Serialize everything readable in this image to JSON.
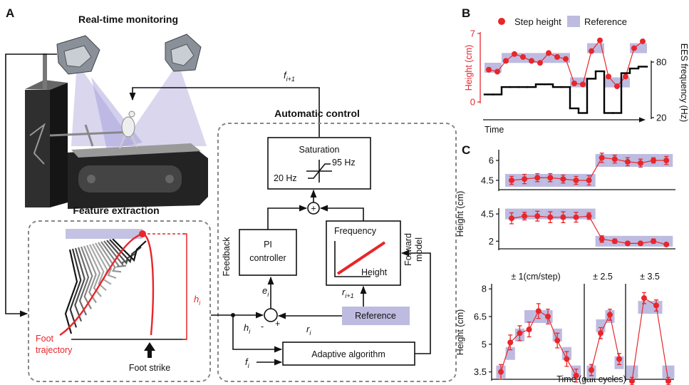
{
  "panel_labels": [
    "A",
    "B",
    "C"
  ],
  "diagram": {
    "titles": {
      "monitoring": "Real-time monitoring",
      "feature": "Feature extraction",
      "control": "Automatic control"
    },
    "saturation": {
      "title": "Saturation",
      "upper": "95 Hz",
      "lower": "20 Hz"
    },
    "sum_sign": "+",
    "pi_box": [
      "PI",
      "controller"
    ],
    "feedback": "Feedback",
    "forward_box": {
      "y_axis": "Frequency",
      "x_axis": "Height"
    },
    "forward_model": [
      "Forward",
      "model"
    ],
    "reference": "Reference",
    "adaptive": "Adaptive algorithm",
    "signs": {
      "minus": "-",
      "plus": "+"
    },
    "foot_trajectory": [
      "Foot",
      "trajectory"
    ],
    "foot_strike": "Foot strike",
    "symbols": {
      "f_next": {
        "base": "f",
        "sub": "i+1"
      },
      "e": {
        "base": "e",
        "sub": "i"
      },
      "r_next": {
        "base": "r",
        "sub": "i+1"
      },
      "r": {
        "base": "r",
        "sub": "i"
      },
      "h_input": {
        "base": "h",
        "sub": "i"
      },
      "f": {
        "base": "f",
        "sub": "i"
      },
      "h_feature": {
        "base": "h",
        "sub": "i"
      }
    }
  },
  "chart_data": [
    {
      "type": "line",
      "ylabel": "Height (cm)",
      "y2label": "EES frequency (Hz)",
      "xlabel": "Time",
      "ylim": [
        0,
        7
      ],
      "yticks": [
        0,
        7
      ],
      "y2lim": [
        20,
        80
      ],
      "y2ticks": [
        20,
        80
      ],
      "series": [
        {
          "name": "Step height",
          "color": "#e8262b",
          "style": "dots",
          "values": [
            3.3,
            3.1,
            4.2,
            4.9,
            4.6,
            4.2,
            4.0,
            5.0,
            4.6,
            4.4,
            1.9,
            1.8,
            5.2,
            6.3,
            2.6,
            1.6,
            2.6,
            5.5,
            6.2
          ]
        },
        {
          "name": "Reference",
          "color": "#bdbbe0",
          "style": "band",
          "values": [
            3.5,
            3.5,
            4.5,
            4.5,
            4.5,
            4.5,
            4.5,
            4.5,
            4.5,
            4.5,
            2.0,
            2.0,
            5.5,
            5.5,
            2.0,
            2.0,
            2.0,
            5.5,
            5.5
          ]
        },
        {
          "color": "#000000",
          "style": "step",
          "axis": "y2",
          "values": [
            45,
            45,
            53,
            53,
            53,
            53,
            56,
            56,
            53,
            53,
            30,
            25,
            62,
            70,
            25,
            25,
            68,
            73,
            75
          ]
        }
      ]
    },
    {
      "type": "line",
      "ylabel": "Height (cm)",
      "ylim": [
        3.8,
        6.7
      ],
      "yticks": [
        4.5,
        6
      ],
      "series": [
        {
          "color": "#bdbbe0",
          "style": "band",
          "values": [
            4.5,
            4.5,
            4.5,
            4.5,
            4.5,
            4.5,
            4.5,
            6,
            6,
            6,
            6,
            6,
            6
          ]
        },
        {
          "color": "#e8262b",
          "style": "dots",
          "values": [
            4.5,
            4.6,
            4.7,
            4.7,
            4.6,
            4.5,
            4.5,
            6.2,
            6.1,
            5.9,
            5.8,
            6.0,
            6.0
          ],
          "errors": [
            0.3,
            0.35,
            0.3,
            0.3,
            0.3,
            0.3,
            0.35,
            0.35,
            0.3,
            0.3,
            0.3,
            0.2,
            0.3
          ]
        }
      ]
    },
    {
      "type": "line",
      "ylim": [
        1.3,
        4.9
      ],
      "yticks": [
        2,
        4.5
      ],
      "series": [
        {
          "color": "#bdbbe0",
          "style": "band",
          "values": [
            4.5,
            4.5,
            4.5,
            4.5,
            4.5,
            4.5,
            4.5,
            2,
            2,
            2,
            2,
            2,
            2
          ]
        },
        {
          "color": "#e8262b",
          "style": "dots",
          "values": [
            4.1,
            4.3,
            4.3,
            4.2,
            4.2,
            4.2,
            4.3,
            2.2,
            2.0,
            1.8,
            1.8,
            2.0,
            1.7
          ],
          "errors": [
            0.5,
            0.35,
            0.45,
            0.5,
            0.5,
            0.45,
            0.3,
            0.3,
            0.2,
            0.15,
            0.15,
            0.2,
            0.1
          ]
        }
      ]
    },
    {
      "type": "line",
      "title": "± 1(cm/step)",
      "ylabel": "Height (cm)",
      "ylim": [
        3.1,
        8.2
      ],
      "yticks": [
        3.5,
        5,
        6.5,
        8
      ],
      "series": [
        {
          "color": "#bdbbe0",
          "style": "band",
          "values": [
            3.5,
            4.5,
            5.5,
            6.5,
            6.5,
            6.5,
            5.5,
            4.5,
            3.5
          ]
        },
        {
          "color": "#e8262b",
          "style": "dots",
          "values": [
            3.5,
            5.1,
            5.6,
            5.8,
            6.8,
            6.5,
            5.2,
            4.2,
            3.3
          ],
          "errors": [
            0.4,
            0.4,
            0.4,
            0.4,
            0.4,
            0.4,
            0.4,
            0.4,
            0.35
          ]
        }
      ]
    },
    {
      "type": "line",
      "title": "± 2.5",
      "xlabel": "Time (gait cycles)",
      "ylim": [
        3.1,
        8.2
      ],
      "series": [
        {
          "color": "#bdbbe0",
          "style": "band",
          "values": [
            3.5,
            6,
            6.5,
            4
          ]
        },
        {
          "color": "#e8262b",
          "style": "dots",
          "values": [
            3.6,
            5.6,
            6.6,
            4.2
          ],
          "errors": [
            0.3,
            0.3,
            0.3,
            0.3
          ]
        }
      ]
    },
    {
      "type": "line",
      "title": "± 3.5",
      "ylim": [
        3.1,
        8.2
      ],
      "series": [
        {
          "color": "#bdbbe0",
          "style": "band",
          "values": [
            3.5,
            7,
            7,
            3.5
          ]
        },
        {
          "color": "#e8262b",
          "style": "dots",
          "values": [
            3.0,
            7.5,
            7.1,
            3.0
          ],
          "errors": [
            0.2,
            0.3,
            0.3,
            0.2
          ]
        }
      ]
    }
  ]
}
